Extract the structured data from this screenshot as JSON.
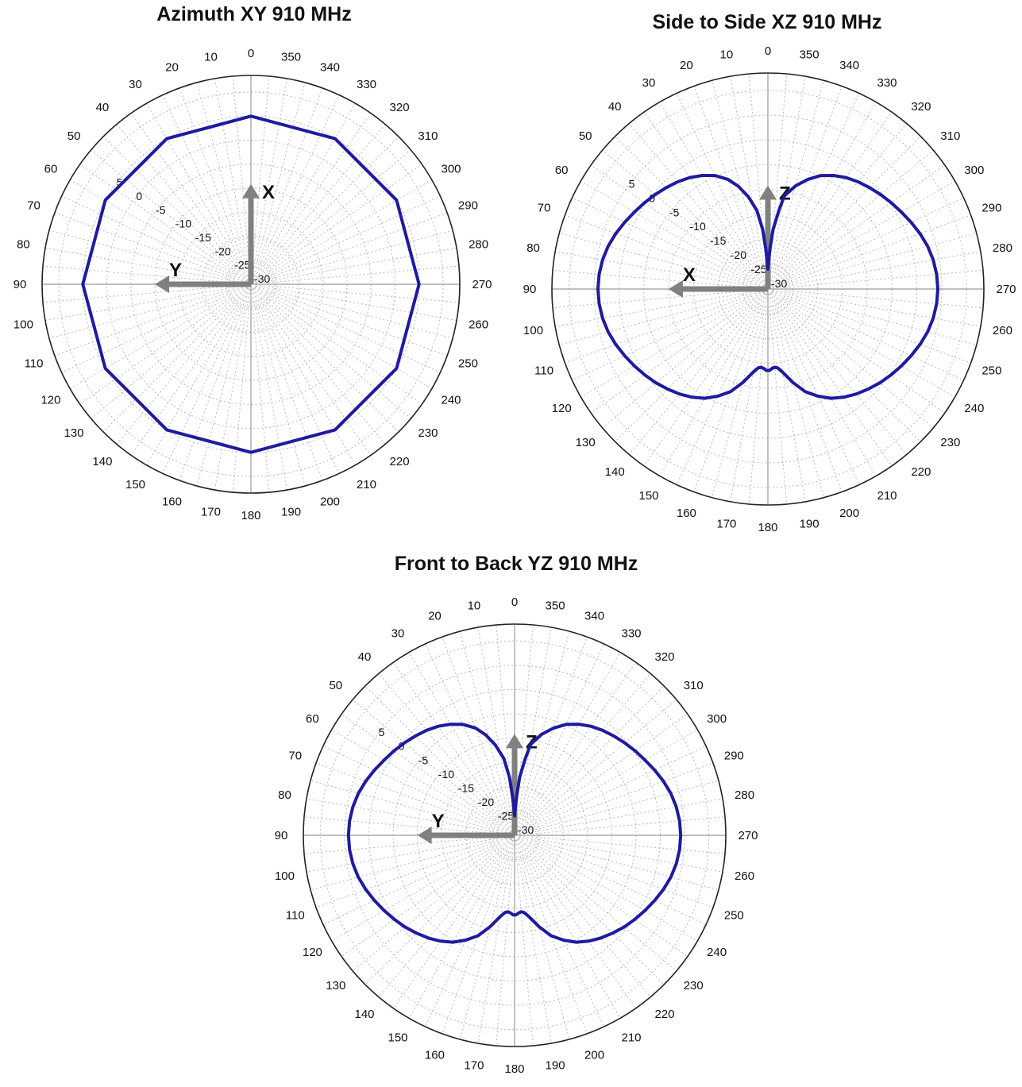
{
  "colors": {
    "trace": "#1f1aa0",
    "axis_arrow": "#808080",
    "grid": "#b8b8b8",
    "outer": "#222222"
  },
  "chart_data": [
    {
      "type": "polar-line",
      "title": "Azimuth XY  910 MHz",
      "angle_direction": "counterclockwise",
      "zero_angle": "top",
      "theta_tick_labels": [
        "0",
        "10",
        "20",
        "30",
        "40",
        "50",
        "60",
        "70",
        "80",
        "90",
        "100",
        "110",
        "120",
        "130",
        "140",
        "150",
        "160",
        "170",
        "180",
        "190",
        "200",
        "210",
        "220",
        "230",
        "240",
        "250",
        "260",
        "270",
        "280",
        "290",
        "300",
        "310",
        "320",
        "330",
        "340",
        "350"
      ],
      "radial_tick_labels": [
        "5",
        "0",
        "-5",
        "-10",
        "-15",
        "-20",
        "-25",
        "-30"
      ],
      "rlim": [
        -30,
        10
      ],
      "grid": true,
      "axis_arrows": [
        {
          "label": "X",
          "direction": "up"
        },
        {
          "label": "Y",
          "direction": "left"
        }
      ],
      "series": [
        {
          "theta": [
            0,
            30,
            60,
            90,
            120,
            150,
            180,
            210,
            240,
            270,
            300,
            330,
            360
          ],
          "r": [
            5,
            5,
            5,
            5,
            5,
            5,
            5,
            5,
            5,
            5,
            5,
            5,
            5
          ]
        }
      ]
    },
    {
      "type": "polar-line",
      "title": "Side to Side XZ  910 MHz",
      "angle_direction": "counterclockwise",
      "zero_angle": "top",
      "theta_tick_labels": [
        "0",
        "10",
        "20",
        "30",
        "40",
        "50",
        "60",
        "70",
        "80",
        "90",
        "100",
        "110",
        "120",
        "130",
        "140",
        "150",
        "160",
        "170",
        "180",
        "190",
        "200",
        "210",
        "220",
        "230",
        "240",
        "250",
        "260",
        "270",
        "280",
        "290",
        "300",
        "310",
        "320",
        "330",
        "340",
        "350"
      ],
      "radial_tick_labels": [
        "5",
        "0",
        "-5",
        "-10",
        "-15",
        "-20",
        "-25",
        "-30"
      ],
      "rlim": [
        -30,
        10
      ],
      "grid": true,
      "axis_arrows": [
        {
          "label": "Z",
          "direction": "up"
        },
        {
          "label": "X",
          "direction": "left"
        }
      ],
      "series": [
        {
          "theta": [
            0,
            1,
            3,
            5,
            8,
            12,
            16,
            20,
            25,
            30,
            35,
            40,
            45,
            50,
            55,
            60,
            65,
            70,
            75,
            80,
            85,
            90,
            95,
            100,
            105,
            110,
            115,
            120,
            125,
            130,
            135,
            140,
            145,
            150,
            155,
            160,
            165,
            170,
            173,
            175,
            177,
            179,
            180,
            181,
            183,
            185,
            187,
            190,
            195,
            200,
            205,
            210,
            215,
            220,
            225,
            230,
            235,
            240,
            245,
            250,
            255,
            260,
            265,
            270,
            275,
            280,
            285,
            290,
            295,
            300,
            305,
            310,
            315,
            320,
            325,
            330,
            335,
            340,
            345,
            350,
            352,
            355,
            357,
            359,
            360
          ],
          "r": [
            -26,
            -25,
            -22,
            -18,
            -14,
            -11,
            -8.5,
            -6.5,
            -4.8,
            -3.6,
            -2.6,
            -1.8,
            -1.1,
            -0.4,
            0.3,
            1.0,
            1.8,
            2.6,
            3.3,
            3.8,
            4.1,
            4.2,
            4.1,
            3.8,
            3.3,
            2.6,
            1.8,
            1.0,
            0.2,
            -0.6,
            -1.5,
            -2.4,
            -3.4,
            -4.6,
            -6.2,
            -8.0,
            -10.5,
            -13.0,
            -14.0,
            -14.2,
            -14.0,
            -13.6,
            -13.6,
            -13.6,
            -14.0,
            -14.2,
            -14.0,
            -13.0,
            -10.5,
            -8.0,
            -6.2,
            -4.6,
            -3.4,
            -2.4,
            -1.5,
            -0.6,
            0.2,
            1.0,
            1.8,
            2.6,
            3.3,
            3.8,
            4.1,
            4.2,
            4.1,
            3.8,
            3.3,
            2.6,
            1.8,
            1.0,
            0.3,
            -0.4,
            -1.1,
            -1.8,
            -2.6,
            -3.6,
            -4.8,
            -6.5,
            -8.5,
            -11,
            -14,
            -18,
            -22,
            -25,
            -26
          ]
        }
      ]
    },
    {
      "type": "polar-line",
      "title": "Front to Back YZ  910 MHz",
      "angle_direction": "counterclockwise",
      "zero_angle": "top",
      "theta_tick_labels": [
        "0",
        "10",
        "20",
        "30",
        "40",
        "50",
        "60",
        "70",
        "80",
        "90",
        "100",
        "110",
        "120",
        "130",
        "140",
        "150",
        "160",
        "170",
        "180",
        "190",
        "200",
        "210",
        "220",
        "230",
        "240",
        "250",
        "260",
        "270",
        "280",
        "290",
        "300",
        "310",
        "320",
        "330",
        "340",
        "350"
      ],
      "radial_tick_labels": [
        "5",
        "0",
        "-5",
        "-10",
        "-15",
        "-20",
        "-25",
        "-30"
      ],
      "rlim": [
        -30,
        10
      ],
      "grid": true,
      "axis_arrows": [
        {
          "label": "Z",
          "direction": "up"
        },
        {
          "label": "Y",
          "direction": "left"
        }
      ],
      "series": [
        {
          "theta": [
            0,
            1,
            3,
            5,
            8,
            12,
            16,
            20,
            25,
            30,
            35,
            40,
            45,
            50,
            55,
            60,
            65,
            70,
            75,
            80,
            85,
            90,
            95,
            100,
            105,
            110,
            115,
            120,
            125,
            130,
            135,
            140,
            145,
            150,
            155,
            160,
            165,
            170,
            173,
            175,
            177,
            179,
            180,
            181,
            183,
            185,
            187,
            190,
            195,
            200,
            205,
            210,
            215,
            220,
            225,
            230,
            235,
            240,
            245,
            250,
            255,
            260,
            265,
            270,
            275,
            280,
            285,
            290,
            295,
            300,
            305,
            310,
            315,
            320,
            325,
            330,
            335,
            340,
            345,
            350,
            352,
            355,
            357,
            359,
            360
          ],
          "r": [
            -26,
            -25,
            -22,
            -18,
            -14,
            -11,
            -8.5,
            -6.5,
            -4.8,
            -3.6,
            -2.6,
            -1.8,
            -1.1,
            -0.4,
            0.3,
            1.0,
            1.8,
            2.6,
            3.3,
            3.8,
            4.1,
            4.2,
            4.1,
            3.8,
            3.3,
            2.6,
            1.8,
            1.0,
            0.2,
            -0.6,
            -1.5,
            -2.4,
            -3.4,
            -4.6,
            -6.2,
            -8.0,
            -10.5,
            -13.0,
            -14.0,
            -14.2,
            -14.0,
            -13.6,
            -13.6,
            -13.6,
            -14.0,
            -14.2,
            -14.0,
            -13.0,
            -10.5,
            -8.0,
            -6.2,
            -4.6,
            -3.4,
            -2.4,
            -1.5,
            -0.6,
            0.2,
            1.0,
            1.8,
            2.6,
            3.3,
            3.8,
            4.1,
            4.2,
            4.1,
            3.8,
            3.3,
            2.6,
            1.8,
            1.0,
            0.3,
            -0.4,
            -1.1,
            -1.8,
            -2.6,
            -3.6,
            -4.8,
            -6.5,
            -8.5,
            -11,
            -14,
            -18,
            -22,
            -25,
            -26
          ]
        }
      ]
    }
  ]
}
